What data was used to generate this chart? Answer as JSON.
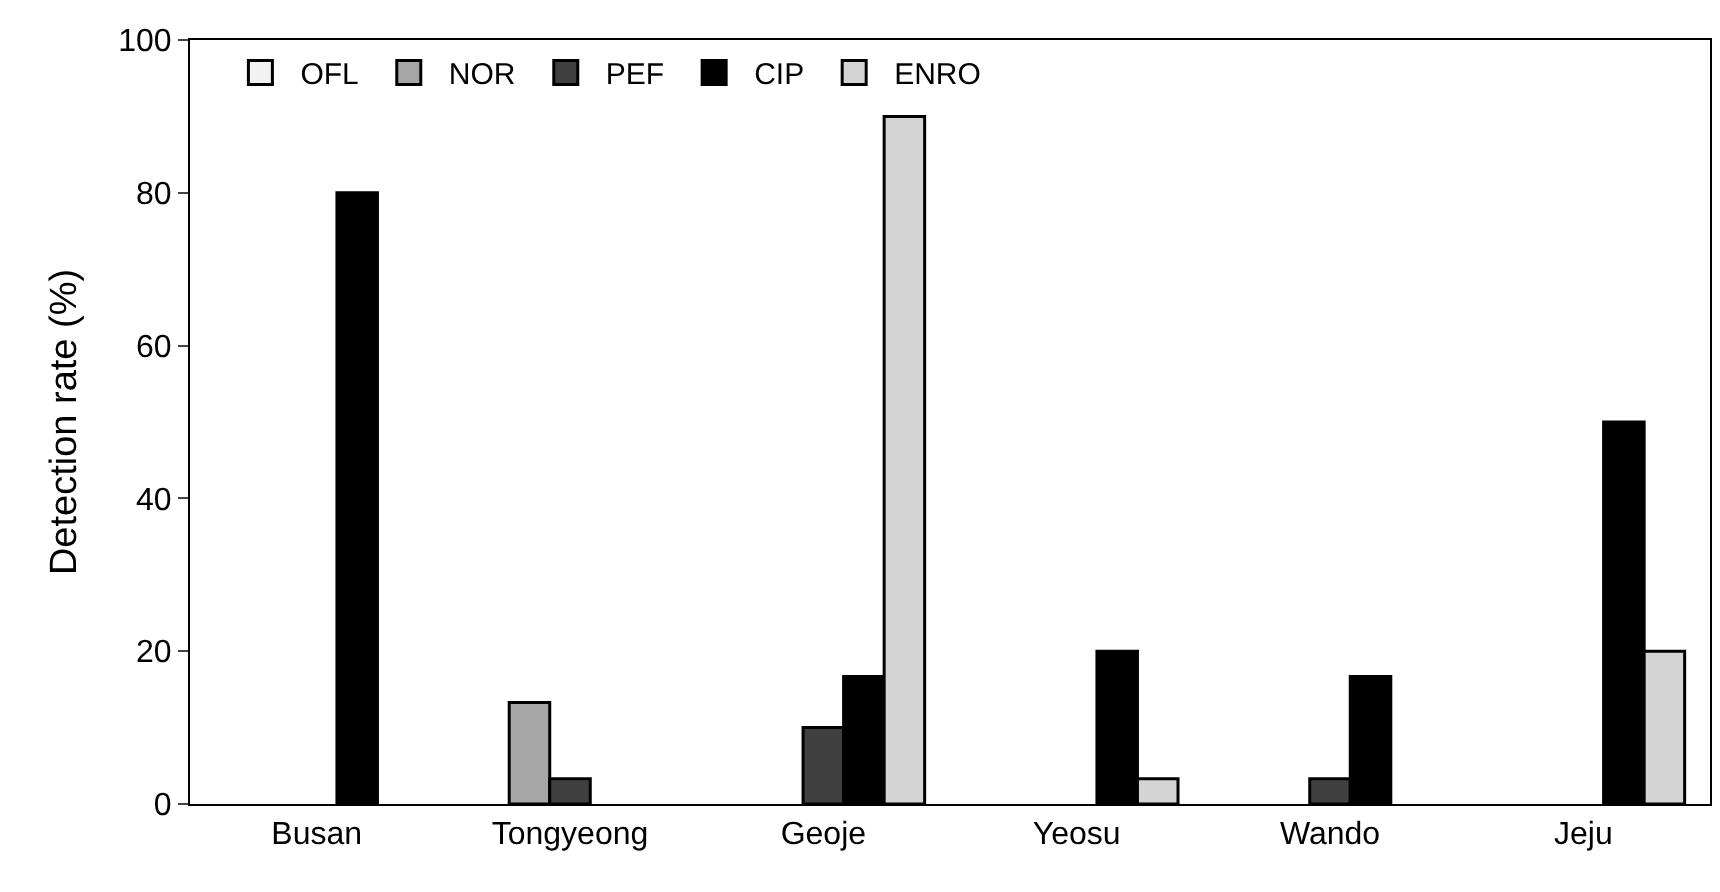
{
  "chart_data": {
    "type": "bar",
    "ylabel": "Detection rate (%)",
    "categories": [
      "Busan",
      "Tongyeong",
      "Geoje",
      "Yeosu",
      "Wando",
      "Jeju"
    ],
    "series": [
      {
        "name": "OFL",
        "color": "#f2f2f2",
        "values": [
          null,
          null,
          null,
          null,
          null,
          null
        ]
      },
      {
        "name": "NOR",
        "color": "#a6a6a6",
        "values": [
          null,
          13.3,
          null,
          null,
          null,
          null
        ]
      },
      {
        "name": "PEF",
        "color": "#404040",
        "values": [
          null,
          3.3,
          10,
          null,
          3.3,
          null
        ]
      },
      {
        "name": "CIP",
        "color": "#000000",
        "values": [
          80,
          null,
          16.7,
          20,
          16.7,
          50
        ]
      },
      {
        "name": "ENRO",
        "color": "#d4d4d4",
        "values": [
          null,
          null,
          90,
          3.3,
          null,
          20
        ]
      }
    ],
    "ylim": [
      0,
      100
    ],
    "yticks": [
      0,
      20,
      40,
      60,
      80,
      100
    ],
    "grid": false,
    "legend": "top left"
  }
}
